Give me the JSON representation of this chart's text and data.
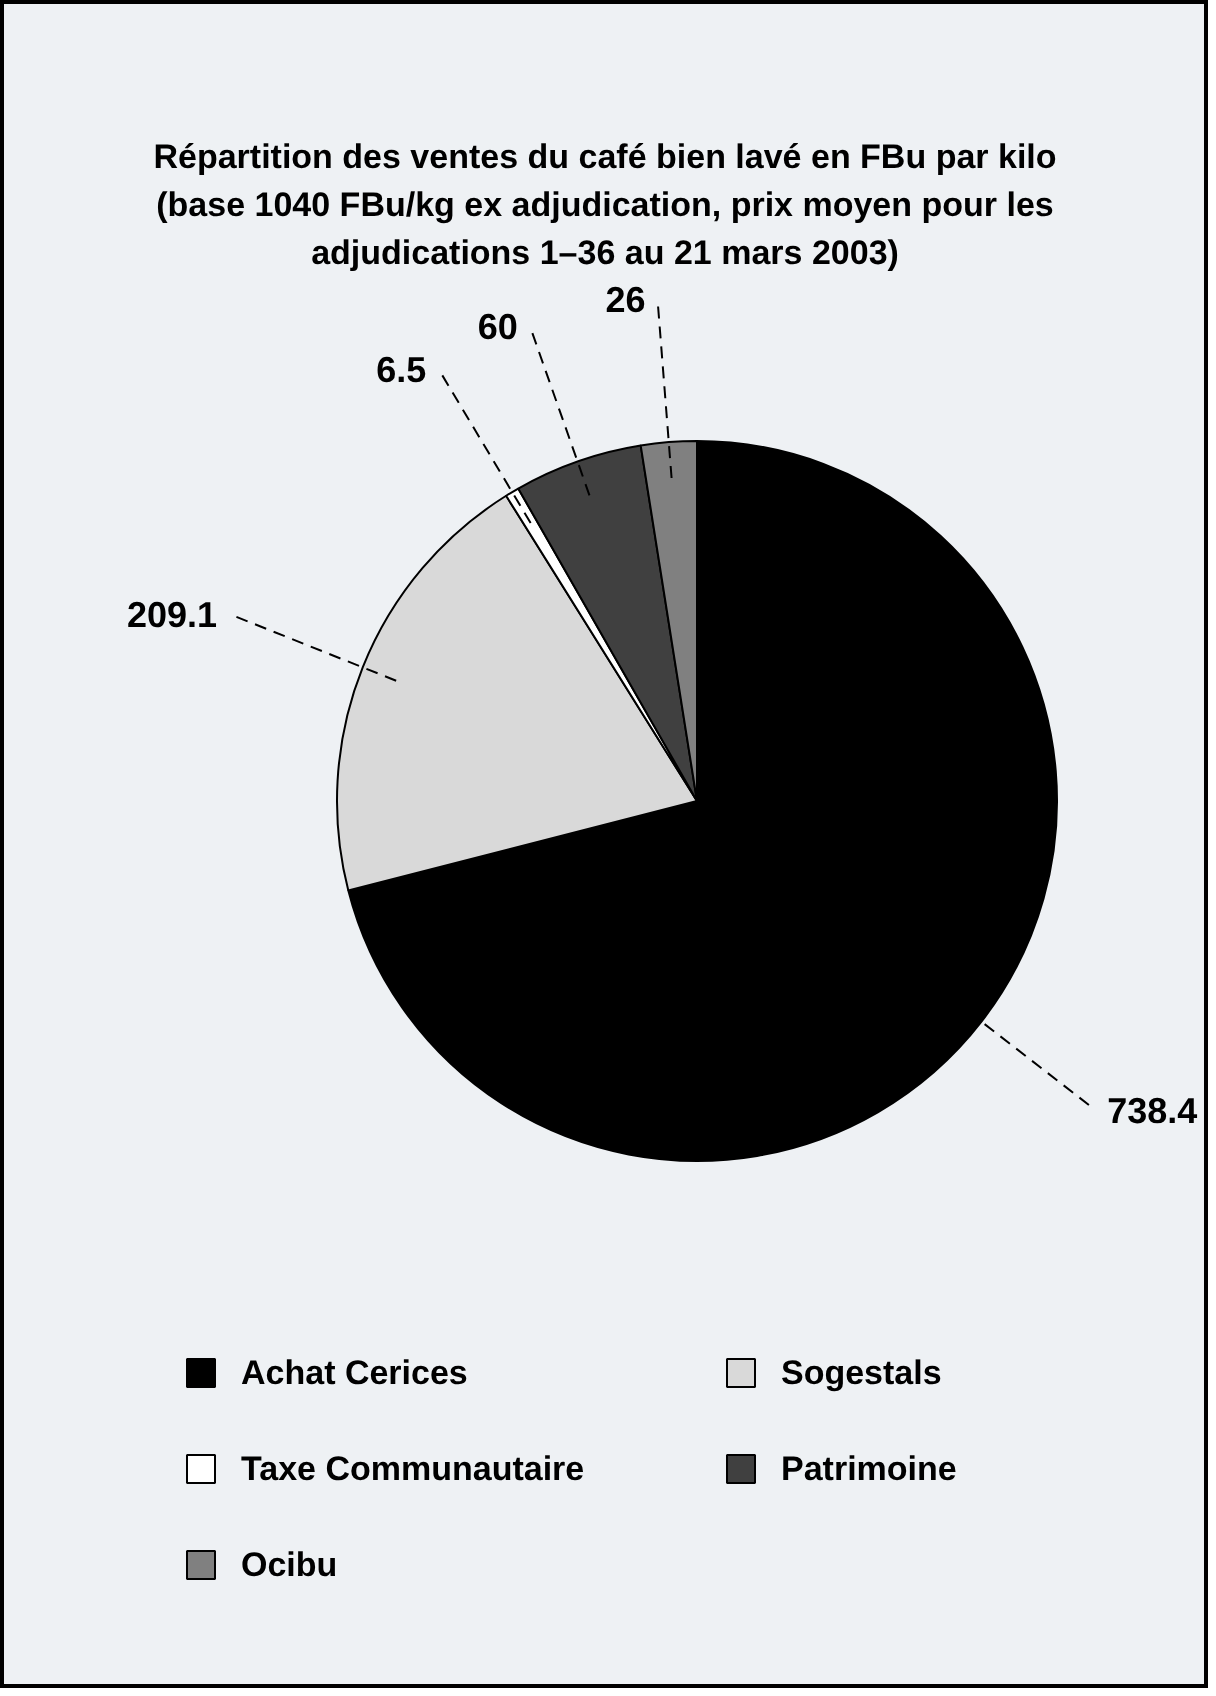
{
  "chart_data": {
    "type": "pie",
    "title": "Répartition des ventes du café bien lavé en FBu par kilo\n(base 1040 FBu/kg ex adjudication, prix moyen pour les\nadjudications 1–36 au 21 mars 2003)",
    "categories": [
      "Achat Cerices",
      "Sogestals",
      "Taxe Communautaire",
      "Patrimoine",
      "Ocibu"
    ],
    "values": [
      738.4,
      209.1,
      6.5,
      60,
      26
    ],
    "colors": [
      "#000000",
      "#d9d9d9",
      "#ffffff",
      "#404040",
      "#808080"
    ],
    "data_labels": true,
    "legend": "bottom"
  }
}
